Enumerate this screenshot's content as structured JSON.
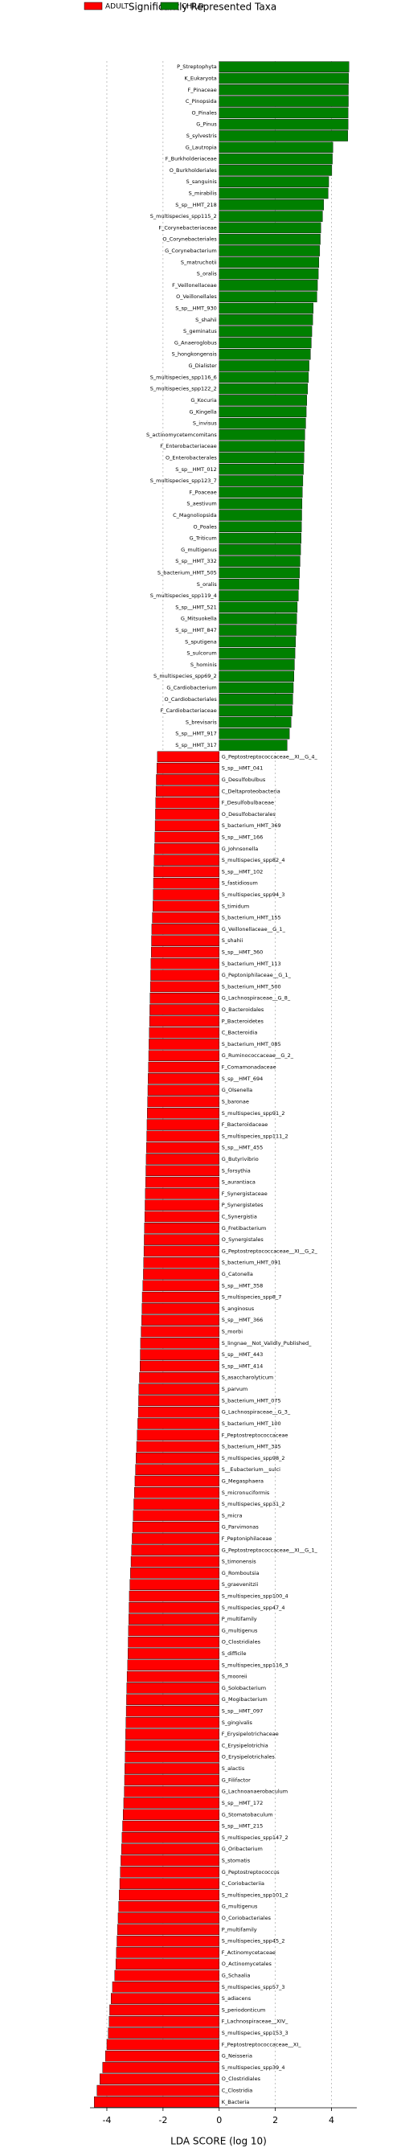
{
  "chart_data": {
    "type": "barh",
    "title": "Significantly Represented Taxa",
    "xlabel": "LDA SCORE (log 10)",
    "xlim": [
      -4.6,
      4.9
    ],
    "xticks": [
      -4,
      -2,
      0,
      2,
      4
    ],
    "grid": true,
    "series": [
      {
        "name": "ADULT",
        "color": "#ff0000",
        "categories": [
          "G_Peptostreptococcaceae__XI__G_4_",
          "S_sp__HMT_041",
          "G_Desulfobulbus",
          "C_Deltaproteobacteria",
          "F_Desulfobulbaceae",
          "O_Desulfobacterales",
          "S_bacterium_HMT_369",
          "S_sp__HMT_166",
          "G_Johnsonella",
          "S_multispecies_spp82_4",
          "S_sp__HMT_102",
          "S_fastidiosum",
          "S_multispecies_spp94_3",
          "S_timidum",
          "S_bacterium_HMT_155",
          "G_Veillonellaceae__G_1_",
          "S_shahii",
          "S_sp__HMT_360",
          "S_bacterium_HMT_113",
          "G_Peptoniphilaceae__G_1_",
          "S_bacterium_HMT_500",
          "G_Lachnospiraceae__G_8_",
          "O_Bacteroidales",
          "P_Bacteroidetes",
          "C_Bacteroidia",
          "S_bacterium_HMT_085",
          "G_Ruminococcaceae__G_2_",
          "F_Comamonadaceae",
          "S_sp__HMT_694",
          "G_Olsenella",
          "S_baronae",
          "S_multispecies_spp91_2",
          "F_Bacteroidaceae",
          "S_multispecies_spp111_2",
          "S_sp__HMT_455",
          "G_Butyrivibrio",
          "S_forsythia",
          "S_aurantiaca",
          "F_Synergistaceae",
          "P_Synergistetes",
          "C_Synergistia",
          "G_Fretibacterium",
          "O_Synergistales",
          "G_Peptostreptococcaceae__XI__G_2_",
          "S_bacterium_HMT_091",
          "G_Catonella",
          "S_sp__HMT_358",
          "S_multispecies_spp8_7",
          "S_anginosus",
          "S_sp__HMT_366",
          "S_morbi",
          "S_lingnae__Not_Validly_Published_",
          "S_sp__HMT_443",
          "S_sp__HMT_414",
          "S_asaccharolyticum",
          "S_parvum",
          "S_bacterium_HMT_075",
          "G_Lachnospiraceae__G_3_",
          "S_bacterium_HMT_100",
          "F_Peptostreptococcaceae",
          "S_bacterium_HMT_345",
          "S_multispecies_spp98_2",
          "S__Eubacterium__sulci",
          "G_Megasphaera",
          "S_micronuciformis",
          "S_multispecies_spp31_2",
          "S_micra",
          "G_Parvimonas",
          "F_Peptoniphilaceae",
          "G_Peptostreptococcaceae__XI__G_1_",
          "S_timonensis",
          "G_Romboutsia",
          "S_graevenitzii",
          "S_multispecies_spp100_4",
          "S_multispecies_spp47_4",
          "P_multifamily",
          "G_multigenus",
          "O_Clostridiales",
          "S_difficile",
          "S_multispecies_spp116_3",
          "S_mooreii",
          "G_Solobacterium",
          "G_Mogibacterium",
          "S_sp__HMT_097",
          "S_gingivalis",
          "F_Erysipelotrichaceae",
          "C_Erysipelotrichia",
          "O_Erysipelotrichales",
          "S_alactis",
          "G_Filifactor",
          "G_Lachnoanaerobaculum",
          "S_sp__HMT_172",
          "G_Stomatobaculum",
          "S_sp__HMT_215",
          "S_multispecies_spp147_2",
          "G_Oribacterium",
          "S_stomatis",
          "G_Peptostreptococcus",
          "C_Coriobacteriia",
          "S_multispecies_spp101_2",
          "G_multigenus",
          "O_Coriobacteriales",
          "P_multifamily",
          "S_multispecies_spp45_2",
          "F_Actinomycetaceae",
          "O_Actinomycetales",
          "G_Schaalia",
          "S_multispecies_spp57_3",
          "S_adiacens",
          "S_periodonticum",
          "F_Lachnospiraceae__XIV_",
          "S_multispecies_spp153_3",
          "F_Peptostreptococcaceae__XI_",
          "G_Neisseria",
          "S_multispecies_spp39_4",
          "O_Clostridiales",
          "C_Clostridia",
          "K_Bacteria"
        ],
        "values": [
          -2.2,
          -2.22,
          -2.24,
          -2.25,
          -2.26,
          -2.27,
          -2.28,
          -2.29,
          -2.3,
          -2.32,
          -2.33,
          -2.34,
          -2.35,
          -2.36,
          -2.38,
          -2.4,
          -2.41,
          -2.42,
          -2.43,
          -2.44,
          -2.45,
          -2.46,
          -2.47,
          -2.48,
          -2.49,
          -2.5,
          -2.51,
          -2.52,
          -2.53,
          -2.54,
          -2.55,
          -2.56,
          -2.57,
          -2.58,
          -2.59,
          -2.6,
          -2.61,
          -2.62,
          -2.63,
          -2.64,
          -2.65,
          -2.66,
          -2.67,
          -2.68,
          -2.69,
          -2.7,
          -2.72,
          -2.74,
          -2.75,
          -2.76,
          -2.78,
          -2.8,
          -2.81,
          -2.82,
          -2.84,
          -2.86,
          -2.87,
          -2.88,
          -2.9,
          -2.92,
          -2.94,
          -2.96,
          -2.98,
          -3.0,
          -3.02,
          -3.04,
          -3.06,
          -3.08,
          -3.1,
          -3.12,
          -3.14,
          -3.16,
          -3.18,
          -3.2,
          -3.21,
          -3.22,
          -3.23,
          -3.24,
          -3.25,
          -3.26,
          -3.28,
          -3.29,
          -3.3,
          -3.31,
          -3.32,
          -3.33,
          -3.34,
          -3.35,
          -3.36,
          -3.37,
          -3.38,
          -3.4,
          -3.42,
          -3.44,
          -3.46,
          -3.48,
          -3.5,
          -3.52,
          -3.54,
          -3.56,
          -3.58,
          -3.6,
          -3.62,
          -3.64,
          -3.66,
          -3.68,
          -3.72,
          -3.8,
          -3.85,
          -3.9,
          -3.92,
          -3.95,
          -4.0,
          -4.05,
          -4.15,
          -4.25,
          -4.35,
          -4.45
        ]
      },
      {
        "name": "CHILD",
        "color": "#008000",
        "categories": [
          "P_Streptophyta",
          "K_Eukaryota",
          "F_Pinaceae",
          "C_Pinopsida",
          "O_Pinales",
          "G_Pinus",
          "S_sylvestris",
          "G_Lautropia",
          "F_Burkholderiaceae",
          "O_Burkholderiales",
          "S_sanguinis",
          "S_mirabilis",
          "S_sp__HMT_218",
          "S_multispecies_spp115_2",
          "F_Corynebacteriaceae",
          "O_Corynebacteriales",
          "G_Corynebacterium",
          "S_matruchotii",
          "S_oralis",
          "F_Veillonellaceae",
          "O_Veillonellales",
          "S_sp__HMT_930",
          "S_shahii",
          "S_geminatus",
          "G_Anaeroglobus",
          "S_hongkongensis",
          "G_Dialister",
          "S_multispecies_spp116_6",
          "S_multispecies_spp122_2",
          "G_Kocuria",
          "G_Kingella",
          "S_invisus",
          "S_actinomycetemcomitans",
          "F_Enterobacteriaceae",
          "O_Enterobacterales",
          "S_sp__HMT_012",
          "S_multispecies_spp123_7",
          "F_Poaceae",
          "S_aestivum",
          "C_Magnoliopsida",
          "O_Poales",
          "G_Triticum",
          "G_multigenus",
          "S_sp__HMT_332",
          "S_bacterium_HMT_505",
          "S_oralis",
          "S_multispecies_spp119_4",
          "S_sp__HMT_521",
          "G_Mitsuokella",
          "S_sp__HMT_847",
          "S_sputigena",
          "S_sulcorum",
          "S_hominis",
          "S_multispecies_spp69_2",
          "G_Cardiobacterium",
          "O_Cardiobacteriales",
          "F_Cardiobacteriaceae",
          "S_brevisaris",
          "S_sp__HMT_917",
          "S_sp__HMT_317"
        ],
        "values": [
          4.62,
          4.61,
          4.6,
          4.6,
          4.59,
          4.59,
          4.58,
          4.05,
          4.03,
          4.01,
          3.9,
          3.88,
          3.72,
          3.68,
          3.62,
          3.6,
          3.58,
          3.55,
          3.53,
          3.5,
          3.48,
          3.35,
          3.33,
          3.3,
          3.28,
          3.25,
          3.2,
          3.18,
          3.15,
          3.12,
          3.1,
          3.08,
          3.05,
          3.03,
          3.02,
          3.0,
          2.98,
          2.96,
          2.95,
          2.94,
          2.93,
          2.92,
          2.9,
          2.88,
          2.86,
          2.84,
          2.82,
          2.78,
          2.76,
          2.74,
          2.72,
          2.7,
          2.68,
          2.66,
          2.64,
          2.62,
          2.6,
          2.56,
          2.5,
          2.42
        ]
      }
    ]
  }
}
